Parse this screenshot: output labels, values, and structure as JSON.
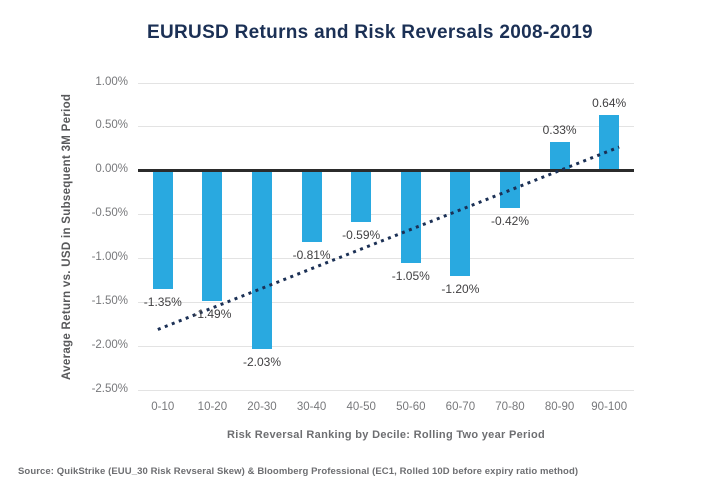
{
  "page_title": "EURUSD Returns and Risk Reversals 2008-2019",
  "source_note": "Source: QuikStrike (EUU_30 Risk Revseral Skew) & Bloomberg Professional (EC1, Rolled 10D before expiry ratio method)",
  "chart_data": {
    "type": "bar",
    "title": "EURUSD Returns and Risk Reversals 2008-2019",
    "categories": [
      "0-10",
      "10-20",
      "20-30",
      "30-40",
      "40-50",
      "50-60",
      "60-70",
      "70-80",
      "80-90",
      "90-100"
    ],
    "values": [
      -1.35,
      -1.49,
      -2.03,
      -0.81,
      -0.59,
      -1.05,
      -1.2,
      -0.42,
      0.33,
      0.64
    ],
    "value_labels": [
      "-1.35%",
      "-1.49%",
      "-2.03%",
      "-0.81%",
      "-0.59%",
      "-1.05%",
      "-1.20%",
      "-0.42%",
      "0.33%",
      "0.64%"
    ],
    "xlabel": "Risk Reversal Ranking by Decile: Rolling Two year Period",
    "ylabel": "Average Return vs. USD in Subsequent 3M Period",
    "ylim": [
      -2.5,
      1.0
    ],
    "yticks": [
      1.0,
      0.5,
      0.0,
      -0.5,
      -1.0,
      -1.5,
      -2.0,
      -2.5
    ],
    "ytick_labels": [
      "1.00%",
      "0.50%",
      "0.00%",
      "-0.50%",
      "-1.00%",
      "-1.50%",
      "-2.00%",
      "-2.50%"
    ],
    "grid": "horizontal",
    "legend": "none",
    "trendline": {
      "style": "dotted",
      "x_start_frac": 0.04,
      "value_start": -1.81,
      "x_end_frac": 0.97,
      "value_end": 0.27
    },
    "colors": {
      "bar": "#29a9e0",
      "trendline": "#1b3055",
      "title": "#1b3055",
      "zero_line": "#2b2b2b",
      "gridline": "#e3e3e3",
      "tick_label": "#77787b",
      "data_label": "#414042",
      "axis_title": "#6d6e71",
      "source": "#6d6e71",
      "background": "#ffffff"
    }
  }
}
